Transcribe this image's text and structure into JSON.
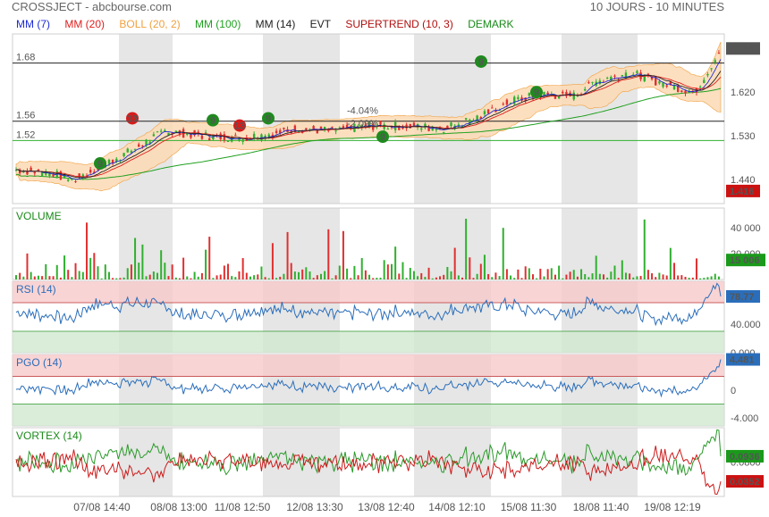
{
  "header": {
    "title": "CROSSJECT - abcbourse.com",
    "range": "10 JOURS - 10 MINUTES"
  },
  "legend": [
    {
      "label": "MM (7)",
      "color": "#1c2bd6"
    },
    {
      "label": "MM (20)",
      "color": "#e02020"
    },
    {
      "label": "BOLL (20, 2)",
      "color": "#f0a040"
    },
    {
      "label": "MM (100)",
      "color": "#20a020"
    },
    {
      "label": "MM (14)",
      "color": "#222222"
    },
    {
      "label": "EVT",
      "color": "#222222"
    },
    {
      "label": "SUPERTREND (10, 3)",
      "color": "#b01010"
    },
    {
      "label": "DEMARK",
      "color": "#1a8a1a"
    }
  ],
  "colors": {
    "up": "#30b030",
    "down": "#e03030",
    "price_tag": "#cc1111",
    "tag_neutral": "#555555",
    "band_red": "#f7c9c9",
    "band_green": "#cfe9cf",
    "session_shade": "#e6e6e6",
    "rsi_line": "#2a6ebb",
    "vortex_plus": "#2a9a2a",
    "vortex_minus": "#cc1a1a"
  },
  "chart_data": [
    {
      "type": "candlestick",
      "panel": "price",
      "y_ticks": [
        "1.710",
        "1.620",
        "1.530",
        "1.440"
      ],
      "ylim": [
        1.39,
        1.74
      ],
      "levels": [
        {
          "label": "1.68",
          "value": 1.68,
          "color": "#222222"
        },
        {
          "label": "1.56",
          "value": 1.56,
          "color": "#222222"
        },
        {
          "label": "1.52",
          "value": 1.52,
          "color": "#30b030"
        }
      ],
      "price_tags": [
        {
          "label": "1.710",
          "value": 1.71,
          "style": "neutral"
        },
        {
          "label": "1.416",
          "value": 1.416,
          "style": "down"
        }
      ],
      "annotations": [
        {
          "text": "-4.04%"
        },
        {
          "text": "-2.09%"
        }
      ],
      "demark_badges": [
        {
          "text": "9",
          "color": "green"
        },
        {
          "text": "13",
          "color": "red"
        },
        {
          "text": "9",
          "color": "green"
        },
        {
          "text": "13",
          "color": "red"
        },
        {
          "text": "9",
          "color": "green"
        },
        {
          "text": "9",
          "color": "green"
        },
        {
          "text": "9",
          "color": "green"
        },
        {
          "text": "9",
          "color": "green"
        }
      ]
    },
    {
      "type": "bar",
      "panel": "volume",
      "title": "VOLUME",
      "y_ticks": [
        "40 000",
        "20 000"
      ],
      "ylim": [
        0,
        55000
      ],
      "last_value": "15 006"
    },
    {
      "type": "line",
      "panel": "rsi",
      "title": "RSI (14)",
      "y_ticks": [
        "40.000",
        "0.000"
      ],
      "ylim": [
        0,
        100
      ],
      "last_value": "78.77"
    },
    {
      "type": "line",
      "panel": "pgo",
      "title": "PGO (14)",
      "y_ticks": [
        "0",
        "-4.000"
      ],
      "ylim": [
        -5.2,
        5.2
      ],
      "last_value": "4.481"
    },
    {
      "type": "line",
      "panel": "vortex",
      "title": "VORTEX (14)",
      "y_ticks": [
        "0.0800"
      ],
      "ylim": [
        0.0,
        0.16
      ],
      "last_values": [
        "0.0936",
        "0.0352"
      ],
      "series": [
        {
          "name": "VI+",
          "color": "#2a9a2a"
        },
        {
          "name": "VI-",
          "color": "#cc1a1a"
        }
      ]
    }
  ],
  "x_labels": [
    "07/08 14:40",
    "08/08 13:00",
    "11/08 12:50",
    "12/08 13:30",
    "13/08 12:40",
    "14/08 12:10",
    "15/08 11:30",
    "18/08 11:40",
    "19/08 12:19"
  ]
}
